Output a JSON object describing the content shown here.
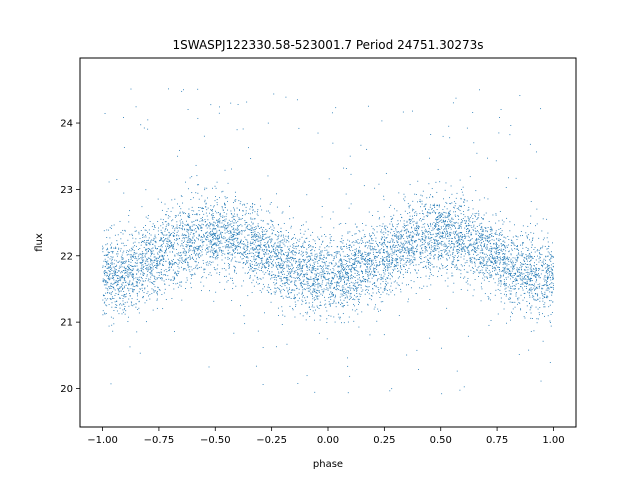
{
  "chart_data": {
    "type": "scatter",
    "title": "1SWASPJ122330.58-523001.7 Period 24751.30273s",
    "xlabel": "phase",
    "ylabel": "flux",
    "xlim": [
      -1.1,
      1.1
    ],
    "ylim": [
      19.42,
      24.98
    ],
    "xticks": [
      -1.0,
      -0.75,
      -0.5,
      -0.25,
      0.0,
      0.25,
      0.5,
      0.75,
      1.0
    ],
    "xtick_labels": [
      "−1.00",
      "−0.75",
      "−0.50",
      "−0.25",
      "0.00",
      "0.25",
      "0.50",
      "0.75",
      "1.00"
    ],
    "yticks": [
      20,
      21,
      22,
      23,
      24
    ],
    "ytick_labels": [
      "20",
      "21",
      "22",
      "23",
      "24"
    ],
    "grid": false,
    "legend": "none",
    "marker_color": "#1f77b4",
    "model": {
      "description": "sinusoid, two cycles over the plotted phase range",
      "mean_flux": 22.0,
      "amplitude": 0.32,
      "peak_phases": [
        -0.5,
        0.5
      ],
      "trough_phases": [
        0.0,
        -1.0,
        1.0
      ],
      "scatter_sigma": 0.3
    },
    "series": [
      {
        "x": [
          -0.98,
          -0.9,
          -0.8,
          -0.7,
          -0.6,
          -0.5,
          -0.4,
          -0.3,
          -0.2,
          -0.1,
          0.0,
          0.1,
          0.2,
          0.3,
          0.4,
          0.5,
          0.6,
          0.7,
          0.8,
          0.9,
          0.98
        ],
        "y": [
          21.7,
          21.9,
          22.1,
          22.25,
          22.3,
          22.35,
          22.3,
          22.2,
          22.0,
          21.9,
          21.7,
          21.8,
          22.0,
          22.25,
          22.3,
          22.35,
          22.3,
          22.2,
          22.05,
          21.9,
          21.7
        ]
      }
    ]
  }
}
